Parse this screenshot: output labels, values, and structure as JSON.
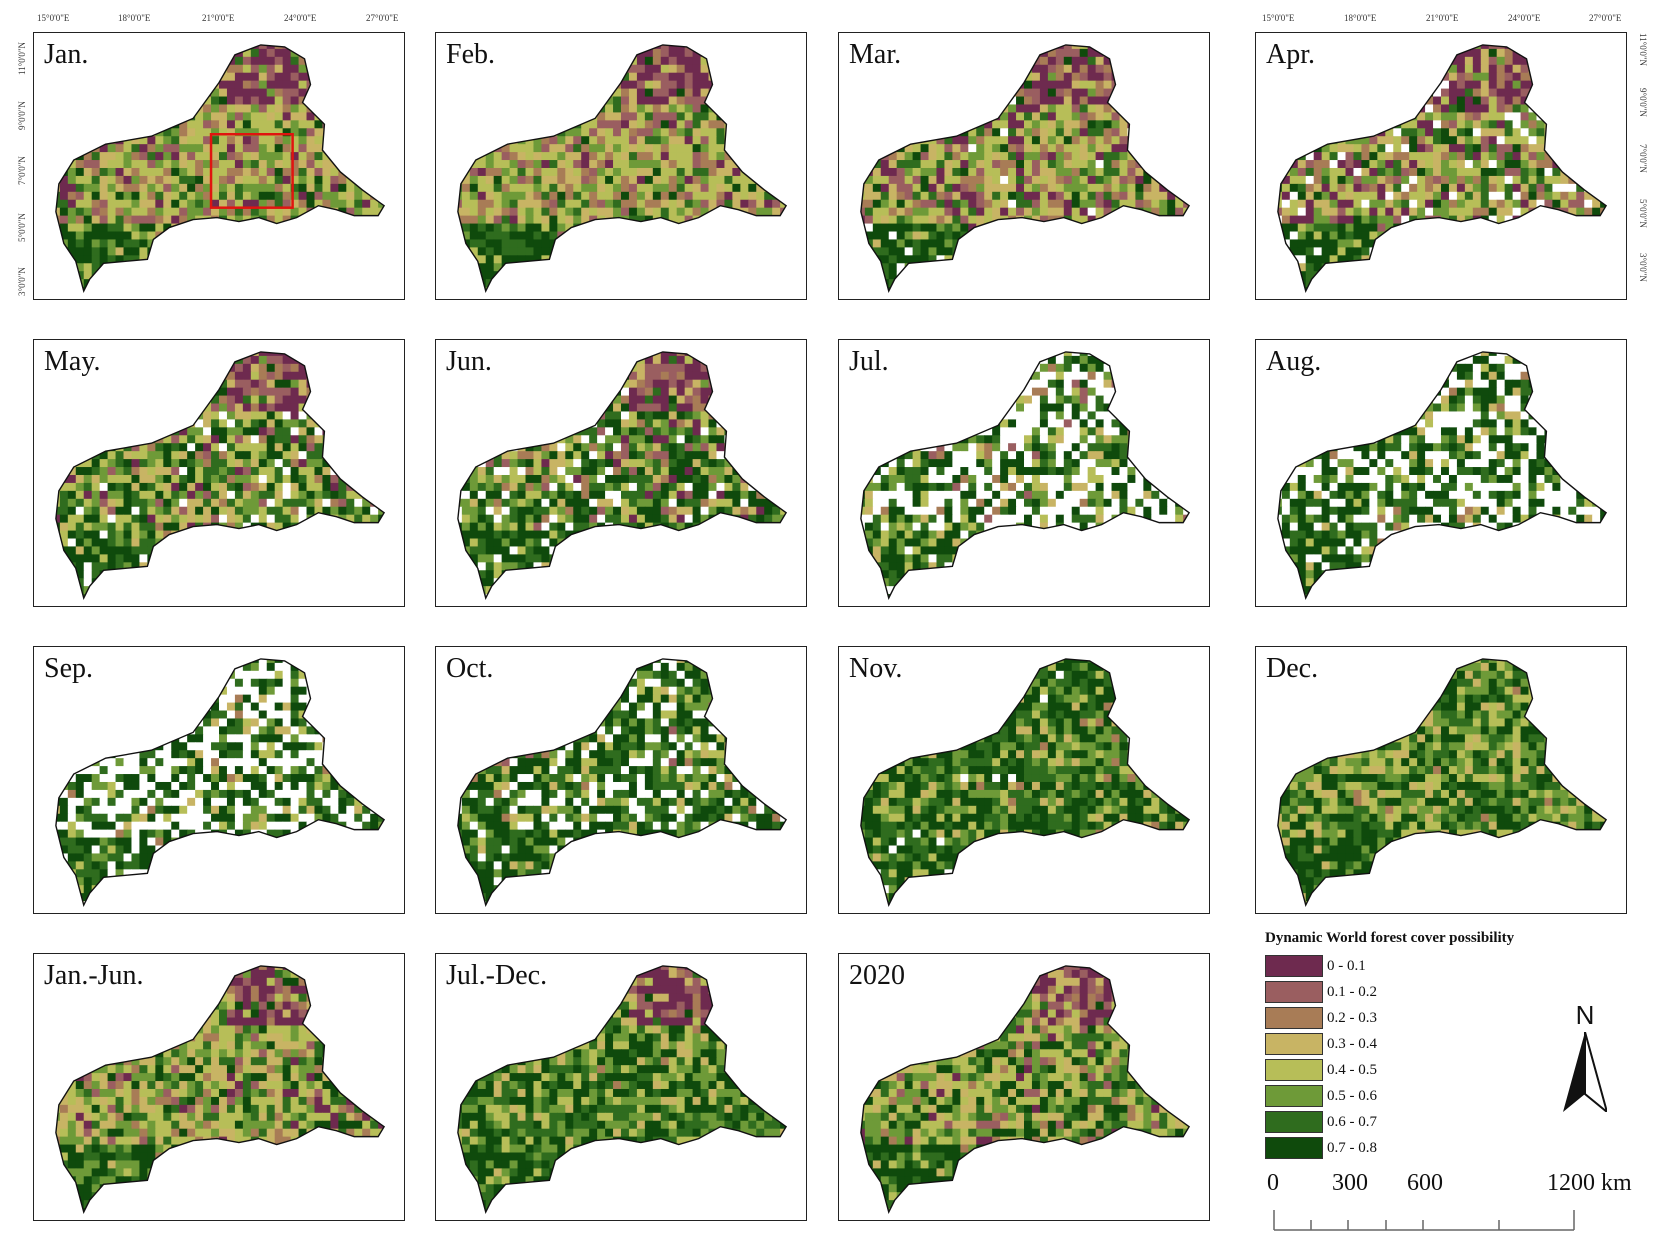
{
  "map": {
    "panels": [
      {
        "label": "Jan."
      },
      {
        "label": "Feb."
      },
      {
        "label": "Mar."
      },
      {
        "label": "Apr."
      },
      {
        "label": "May."
      },
      {
        "label": "Jun."
      },
      {
        "label": "Jul."
      },
      {
        "label": "Aug."
      },
      {
        "label": "Sep."
      },
      {
        "label": "Oct."
      },
      {
        "label": "Nov."
      },
      {
        "label": "Dec."
      },
      {
        "label": "Jan.-Jun."
      },
      {
        "label": "Jul.-Dec."
      },
      {
        "label": "2020"
      }
    ],
    "longitude_ticks": [
      "15°0'0\"E",
      "18°0'0\"E",
      "21°0'0\"E",
      "24°0'0\"E",
      "27°0'0\"E"
    ],
    "latitude_ticks": [
      "11°0'0\"N",
      "9°0'0\"N",
      "7°0'0\"N",
      "5°0'0\"N",
      "3°0'0\"N"
    ]
  },
  "legend": {
    "title": "Dynamic World forest cover possibility",
    "items": [
      {
        "label": "0 - 0.1",
        "color": "#6e2a4f"
      },
      {
        "label": "0.1 - 0.2",
        "color": "#9a5e60"
      },
      {
        "label": "0.2 - 0.3",
        "color": "#a87c56"
      },
      {
        "label": "0.3 - 0.4",
        "color": "#c8b464"
      },
      {
        "label": "0.4 - 0.5",
        "color": "#b7be58"
      },
      {
        "label": "0.5 - 0.6",
        "color": "#6e9a38"
      },
      {
        "label": "0.6 - 0.7",
        "color": "#2f6c1e"
      },
      {
        "label": "0.7 - 0.8",
        "color": "#0f4a0c"
      }
    ]
  },
  "north_arrow": {
    "label": "N"
  },
  "scale_bar": {
    "labels": [
      "0",
      "300",
      "600",
      "1200 km"
    ]
  }
}
